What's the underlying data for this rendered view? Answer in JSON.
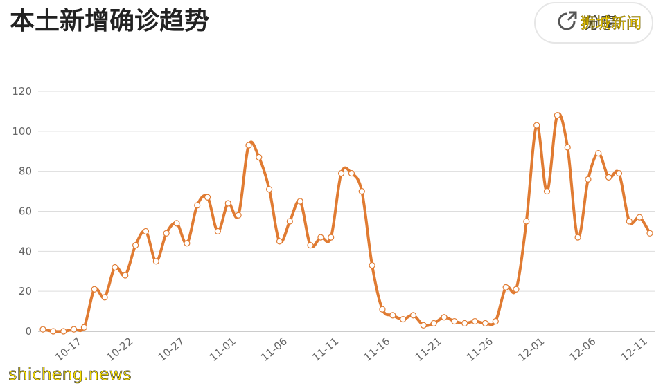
{
  "chart_data": {
    "type": "line",
    "title": "本土新增确诊趋势",
    "button": "分享",
    "watermarks": [
      "狮城新闻",
      "shicheng.news"
    ],
    "categories": [
      null,
      null,
      null,
      "10-17",
      null,
      null,
      null,
      null,
      "10-22",
      null,
      null,
      null,
      null,
      "10-27",
      null,
      null,
      null,
      null,
      "11-01",
      null,
      null,
      null,
      null,
      "11-06",
      null,
      null,
      null,
      null,
      "11-11",
      null,
      null,
      null,
      null,
      "11-16",
      null,
      null,
      null,
      null,
      "11-21",
      null,
      null,
      null,
      null,
      "11-26",
      null,
      null,
      null,
      null,
      "12-01",
      null,
      null,
      null,
      null,
      "12-06",
      null,
      null,
      null,
      null,
      "12-11",
      null
    ],
    "values": [
      1,
      0,
      0,
      1,
      2,
      21,
      17,
      32,
      28,
      43,
      50,
      35,
      49,
      54,
      44,
      63,
      67,
      50,
      64,
      58,
      93,
      87,
      71,
      45,
      55,
      65,
      43,
      47,
      47,
      79,
      79,
      70,
      33,
      11,
      8,
      6,
      8,
      3,
      4,
      7,
      5,
      4,
      5,
      4,
      5,
      22,
      21,
      55,
      103,
      70,
      108,
      92,
      47,
      76,
      89,
      77,
      79,
      55,
      57,
      49
    ],
    "color": "#e07b32",
    "ylim": [
      0,
      120
    ],
    "yticks": [
      0,
      20,
      40,
      60,
      80,
      100,
      120
    ],
    "grid": true
  }
}
